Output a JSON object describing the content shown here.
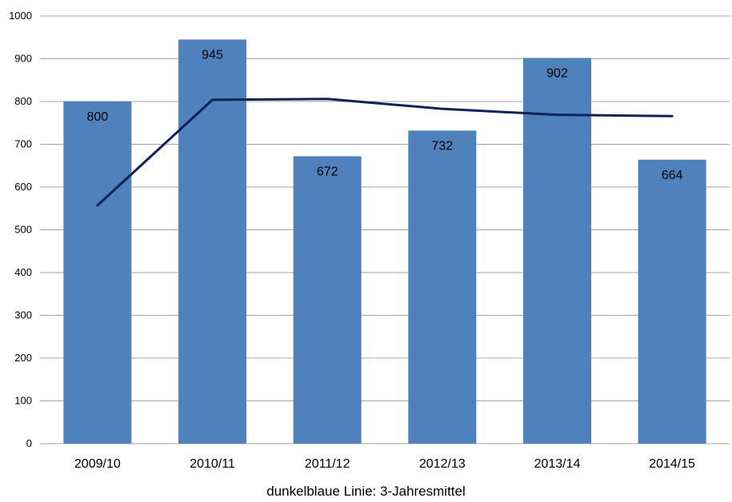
{
  "chart_data": {
    "type": "bar",
    "categories": [
      "2009/10",
      "2010/11",
      "2011/12",
      "2012/13",
      "2013/14",
      "2014/15"
    ],
    "series": [
      {
        "type": "bar",
        "values": [
          800,
          945,
          672,
          732,
          902,
          664
        ],
        "data_labels": [
          "800",
          "945",
          "672",
          "732",
          "902",
          "664"
        ],
        "color": "#4f81bd"
      },
      {
        "type": "line",
        "values": [
          557,
          804,
          806,
          783,
          769,
          766
        ],
        "color": "#0e2158"
      }
    ],
    "ylim": [
      0,
      1000
    ],
    "yticks": [
      0,
      100,
      200,
      300,
      400,
      500,
      600,
      700,
      800,
      900,
      1000
    ],
    "ytick_labels": [
      "0",
      "100",
      "200",
      "300",
      "400",
      "500",
      "600",
      "700",
      "800",
      "900",
      "1000"
    ],
    "grid": true,
    "legend": "none",
    "caption": "dunkelblaue Linie: 3-Jahresmittel",
    "colors": {
      "grid": "#a6a6a6",
      "axis": "#a6a6a6"
    }
  }
}
